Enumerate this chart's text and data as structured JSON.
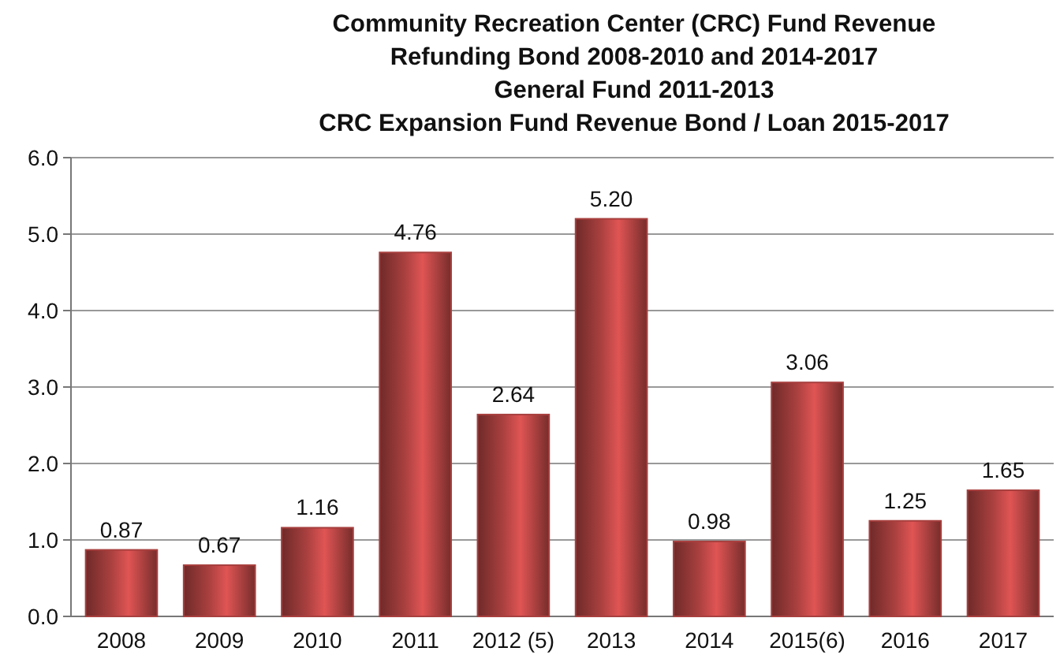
{
  "chart_data": {
    "type": "bar",
    "title": "Community Recreation Center (CRC) Fund Revenue\nRefunding Bond 2008-2010 and 2014-2017\nGeneral Fund 2011-2013\nCRC Expansion Fund Revenue Bond / Loan 2015-2017",
    "categories": [
      "2008",
      "2009",
      "2010",
      "2011",
      "2012 (5)",
      "2013",
      "2014",
      "2015(6)",
      "2016",
      "2017"
    ],
    "values": [
      0.87,
      0.67,
      1.16,
      4.76,
      2.64,
      5.2,
      0.98,
      3.06,
      1.25,
      1.65
    ],
    "value_labels": [
      "0.87",
      "0.67",
      "1.16",
      "4.76",
      "2.64",
      "5.20",
      "0.98",
      "3.06",
      "1.25",
      "1.65"
    ],
    "color": "#a8403f",
    "ylim": [
      0,
      6
    ],
    "yticks": [
      {
        "value": 0,
        "label": "0.0"
      },
      {
        "value": 1,
        "label": "1.0"
      },
      {
        "value": 2,
        "label": "2.0"
      },
      {
        "value": 3,
        "label": "3.0"
      },
      {
        "value": 4,
        "label": "4.0"
      },
      {
        "value": 5,
        "label": "5.0"
      },
      {
        "value": 6,
        "label": "6.0"
      }
    ],
    "grid": "y"
  }
}
